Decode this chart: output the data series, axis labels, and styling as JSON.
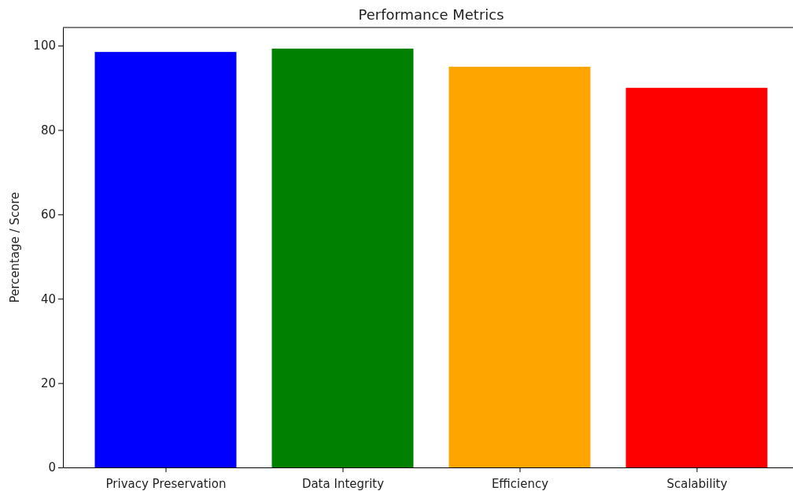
{
  "chart_data": {
    "type": "bar",
    "title": "Performance Metrics",
    "ylabel": "Percentage / Score",
    "categories": [
      "Privacy Preservation",
      "Data Integrity",
      "Efficiency",
      "Scalability"
    ],
    "values": [
      98.5,
      99.3,
      95,
      90
    ],
    "colors": [
      "#0000ff",
      "#008000",
      "#ffa500",
      "#ff0000"
    ],
    "ylim": [
      0,
      104.3
    ],
    "yticks": [
      0,
      20,
      40,
      60,
      80,
      100
    ]
  }
}
